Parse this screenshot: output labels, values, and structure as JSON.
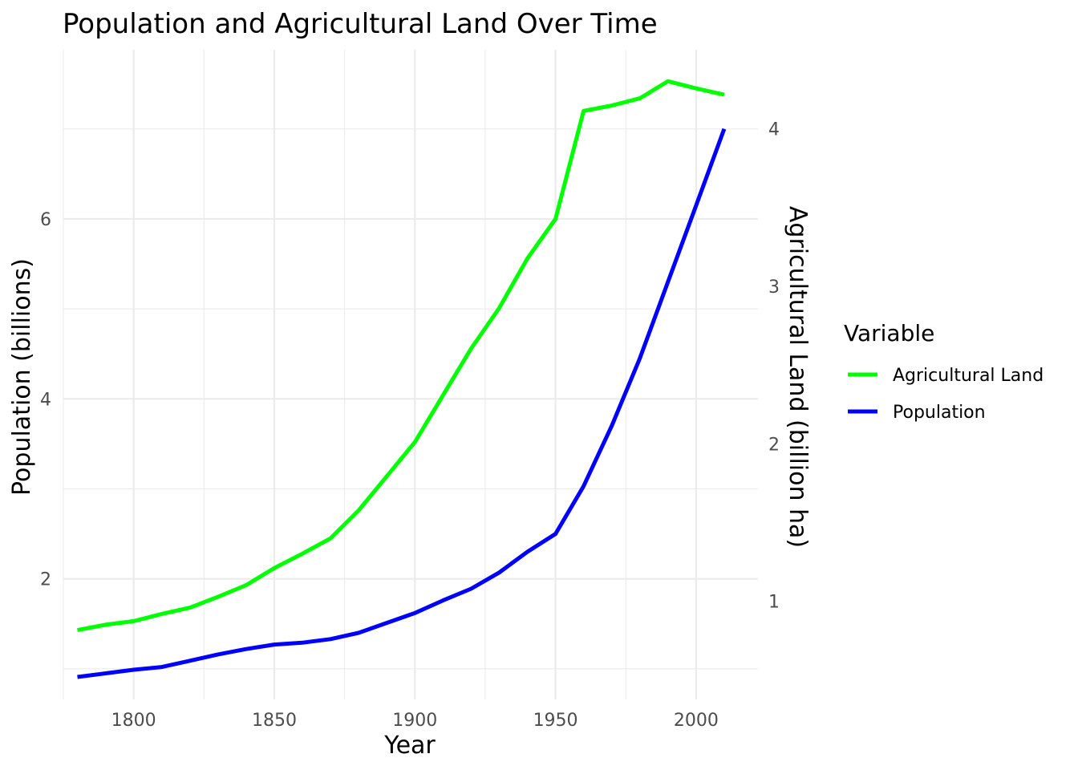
{
  "chart_data": {
    "type": "line",
    "title": "Population and Agricultural Land Over Time",
    "xlabel": "Year",
    "ylabel": "Population (billions)",
    "ylabel_right": "Agricultural Land (billion ha)",
    "xlim": [
      1775,
      2022
    ],
    "ylim": [
      0.66,
      7.88
    ],
    "x_ticks": [
      1800,
      1850,
      1900,
      1950,
      2000
    ],
    "y_ticks": [
      2,
      4,
      6
    ],
    "y_right_ticks": [
      1,
      2,
      3,
      4
    ],
    "y_right_scale_note": "right axis value = population / 1.75",
    "grid": true,
    "legend": {
      "title": "Variable",
      "position": "right",
      "items": [
        "Agricultural Land",
        "Population"
      ]
    },
    "x": [
      1780,
      1790,
      1800,
      1810,
      1820,
      1830,
      1840,
      1850,
      1860,
      1870,
      1880,
      1890,
      1900,
      1910,
      1920,
      1930,
      1940,
      1950,
      1960,
      1970,
      1980,
      1990,
      2000,
      2010
    ],
    "series": [
      {
        "name": "Population",
        "color": "#0000ff",
        "values": [
          0.91,
          0.95,
          0.99,
          1.02,
          1.09,
          1.16,
          1.22,
          1.27,
          1.29,
          1.33,
          1.4,
          1.51,
          1.62,
          1.76,
          1.89,
          2.07,
          2.3,
          2.5,
          3.03,
          3.7,
          4.45,
          5.3,
          6.15,
          7.0
        ]
      },
      {
        "name": "Agricultural Land",
        "color": "#00ff00",
        "values": [
          1.43,
          1.49,
          1.53,
          1.61,
          1.68,
          1.8,
          1.93,
          2.12,
          2.28,
          2.45,
          2.76,
          3.14,
          3.52,
          4.04,
          4.56,
          5.01,
          5.56,
          6.0,
          7.2,
          7.26,
          7.34,
          7.53,
          7.45,
          7.38
        ]
      }
    ]
  }
}
